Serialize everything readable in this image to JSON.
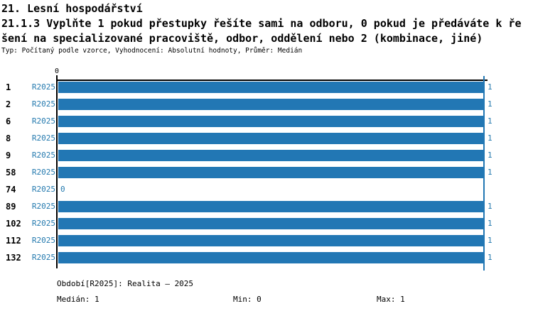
{
  "header": {
    "section_title": "21. Lesní hospodářství",
    "question_line1": "21.1.3 Vyplňte 1 pokud přestupky řešíte sami na odboru, 0 pokud je předáváte k ře",
    "question_line2": "šení na specializované pracoviště, odbor, oddělení nebo 2 (kombinace, jiné)",
    "meta": "Typ: Počítaný podle vzorce, Vyhodnocení: Absolutní hodnoty, Průměr: Medián"
  },
  "chart_data": {
    "type": "bar",
    "orientation": "horizontal",
    "title": "21.1.3 Vyplňte 1 pokud přestupky řešíte sami na odboru, 0 pokud je předáváte k řešení na specializované pracoviště, odbor, oddělení nebo 2 (kombinace, jiné)",
    "categories": [
      "1",
      "2",
      "6",
      "8",
      "9",
      "58",
      "74",
      "89",
      "102",
      "112",
      "132"
    ],
    "series": [
      {
        "name": "R2025",
        "values": [
          1,
          1,
          1,
          1,
          1,
          1,
          0,
          1,
          1,
          1,
          1
        ]
      }
    ],
    "value_labels": [
      "1",
      "1",
      "1",
      "1",
      "1",
      "1",
      "0",
      "1",
      "1",
      "1",
      "1"
    ],
    "xlim": [
      0,
      1
    ],
    "x_tick_labels": [
      "0"
    ],
    "max_gridline_at": 1,
    "grid": "single max line",
    "legend_position": "none",
    "stats": {
      "median": 1,
      "min": 0,
      "max": 1
    }
  },
  "footer": {
    "period": "Období[R2025]: Realita – 2025",
    "median": "Medián: 1",
    "min": "Min: 0",
    "max": "Max: 1"
  },
  "colors": {
    "bar": "#2277b4",
    "label_blue": "#2379ae",
    "axis_black": "#000000",
    "background": "#ffffff"
  }
}
